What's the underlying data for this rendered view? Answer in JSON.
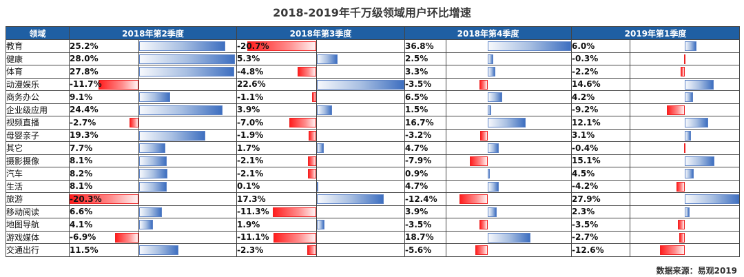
{
  "title": "2018-2019年千万级领域用户环比增速",
  "source": "数据来源：易观2019",
  "chart_data": {
    "type": "table",
    "title": "2018-2019年千万级领域用户环比增速",
    "row_header": "领域",
    "categories": [
      "教育",
      "健康",
      "体育",
      "动漫娱乐",
      "商务办公",
      "企业级应用",
      "视频直播",
      "母婴亲子",
      "其它",
      "摄影摄像",
      "汽车",
      "生活",
      "旅游",
      "移动阅读",
      "地图导航",
      "游戏媒体",
      "交通出行"
    ],
    "series": [
      {
        "name": "2018年第2季度",
        "labels": [
          "25.2%",
          "28.0%",
          "27.8%",
          "-11.7%",
          "9.1%",
          "24.4%",
          "-2.7%",
          "19.3%",
          "7.7%",
          "8.1%",
          "8.2%",
          "8.1%",
          "-20.3%",
          "6.6%",
          "4.1%",
          "-6.9%",
          "11.5%"
        ],
        "values": [
          25.2,
          28.0,
          27.8,
          -11.7,
          9.1,
          24.4,
          -2.7,
          19.3,
          7.7,
          8.1,
          8.2,
          8.1,
          -20.3,
          6.6,
          4.1,
          -6.9,
          11.5
        ]
      },
      {
        "name": "2018年第3季度",
        "labels": [
          "-20.7%",
          "5.3%",
          "-4.8%",
          "22.6%",
          "-1.1%",
          "3.9%",
          "-7.0%",
          "-1.9%",
          "1.7%",
          "-2.1%",
          "-2.1%",
          "0.1%",
          "17.3%",
          "-11.3%",
          "1.9%",
          "-11.1%",
          "-2.3%"
        ],
        "values": [
          -20.7,
          5.3,
          -4.8,
          22.6,
          -1.1,
          3.9,
          -7.0,
          -1.9,
          1.7,
          -2.1,
          -2.1,
          0.1,
          17.3,
          -11.3,
          1.9,
          -11.1,
          -2.3
        ]
      },
      {
        "name": "2018年第4季度",
        "labels": [
          "36.8%",
          "2.5%",
          "3.3%",
          "-3.5%",
          "6.5%",
          "1.5%",
          "16.7%",
          "-3.2%",
          "4.7%",
          "-7.9%",
          "0.9%",
          "4.7%",
          "-12.4%",
          "3.9%",
          "-3.5%",
          "18.7%",
          "-5.6%"
        ],
        "values": [
          36.8,
          2.5,
          3.3,
          -3.5,
          6.5,
          1.5,
          16.7,
          -3.2,
          4.7,
          -7.9,
          0.9,
          4.7,
          -12.4,
          3.9,
          -3.5,
          18.7,
          -5.6
        ]
      },
      {
        "name": "2019年第1季度",
        "labels": [
          "6.0%",
          "-0.3%",
          "-2.2%",
          "14.6%",
          "4.2%",
          "-9.2%",
          "12.1%",
          "3.1%",
          "-0.4%",
          "15.1%",
          "4.5%",
          "-4.2%",
          "27.9%",
          "2.3%",
          "-3.5%",
          "-2.7%",
          "-12.6%"
        ],
        "values": [
          6.0,
          -0.3,
          -2.2,
          14.6,
          4.2,
          -9.2,
          12.1,
          3.1,
          -0.4,
          15.1,
          4.5,
          -4.2,
          27.9,
          2.3,
          -3.5,
          -2.7,
          -12.6
        ]
      }
    ],
    "colors": {
      "header_bg": "#1f5fa3",
      "positive": "#3e6fc0",
      "negative": "#ff2020"
    }
  }
}
